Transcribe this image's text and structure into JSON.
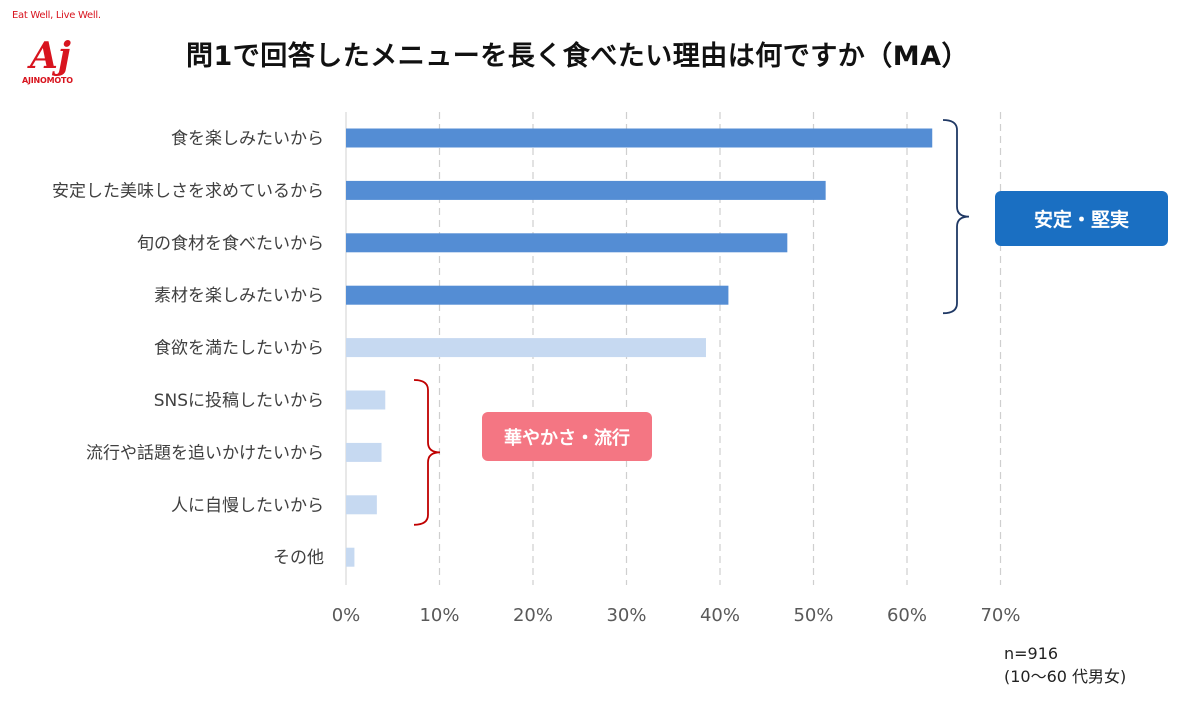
{
  "logo": {
    "tagline": "Eat Well, Live Well.",
    "mark": "Aj",
    "brand": "AJINOMOTO"
  },
  "chart_data": {
    "type": "bar",
    "orientation": "horizontal",
    "title": "問1で回答したメニューを長く食べたい理由は何ですか（MA）",
    "categories": [
      "食を楽しみたいから",
      "安定した美味しさを求めているから",
      "旬の食材を食べたいから",
      "素材を楽しみたいから",
      "食欲を満たしたいから",
      "SNSに投稿したいから",
      "流行や話題を追いかけたいから",
      "人に自慢したいから",
      "その他"
    ],
    "values": [
      62.7,
      51.3,
      47.2,
      40.9,
      38.5,
      4.2,
      3.8,
      3.3,
      0.9
    ],
    "bar_colors": [
      "#548dd4",
      "#548dd4",
      "#548dd4",
      "#548dd4",
      "#c6d9f1",
      "#c6d9f1",
      "#c6d9f1",
      "#c6d9f1",
      "#c6d9f1"
    ],
    "xlim": [
      0,
      70
    ],
    "xticks": [
      "0%",
      "10%",
      "20%",
      "30%",
      "40%",
      "50%",
      "60%",
      "70%"
    ],
    "grid": "vertical-dashed",
    "groups": [
      {
        "label": "安定・堅実",
        "color": "#1a6fc2",
        "bracket_color": "#1f3864"
      },
      {
        "label": "華やかさ・流行",
        "color": "#f47683",
        "bracket_color": "#c00000"
      }
    ]
  },
  "footnote": {
    "sample": "n=916",
    "population": "(10～60 代男女)"
  }
}
